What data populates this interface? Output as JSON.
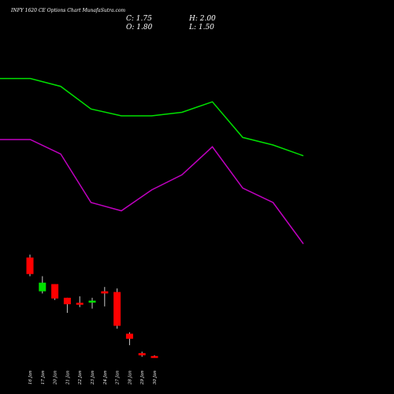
{
  "header": {
    "title": "INFY 1620  CE Options  Chart MunafaSutra.com",
    "close_label": "C: 1.75",
    "high_label": "H: 2.00",
    "open_label": "O: 1.80",
    "low_label": "L: 1.50"
  },
  "chart_data": {
    "type": "candlestick",
    "categories": [
      "16 Jan",
      "17 Jan",
      "20 Jan",
      "21 Jan",
      "22 Jan",
      "23 Jan",
      "24 Jan",
      "27 Jan",
      "28 Jan",
      "29 Jan",
      "30 Jan"
    ],
    "candles": [
      {
        "date": "16 Jan",
        "open": 29.2,
        "high": 30.0,
        "low": 24.0,
        "close": 24.6
      },
      {
        "date": "17 Jan",
        "open": 19.8,
        "high": 24.0,
        "low": 19.2,
        "close": 22.2
      },
      {
        "date": "20 Jan",
        "open": 21.8,
        "high": 21.8,
        "low": 17.4,
        "close": 17.8
      },
      {
        "date": "21 Jan",
        "open": 18.0,
        "high": 18.0,
        "low": 13.8,
        "close": 16.2
      },
      {
        "date": "22 Jan",
        "open": 16.6,
        "high": 18.4,
        "low": 15.4,
        "close": 16.2
      },
      {
        "date": "23 Jan",
        "open": 16.8,
        "high": 18.0,
        "low": 15.0,
        "close": 17.2
      },
      {
        "date": "24 Jan",
        "open": 19.8,
        "high": 21.0,
        "low": 15.6,
        "close": 19.2
      },
      {
        "date": "27 Jan",
        "open": 19.6,
        "high": 20.6,
        "low": 9.4,
        "close": 10.2
      },
      {
        "date": "28 Jan",
        "open": 8.0,
        "high": 8.4,
        "low": 4.8,
        "close": 6.6
      },
      {
        "date": "29 Jan",
        "open": 2.6,
        "high": 3.0,
        "low": 1.6,
        "close": 2.0
      },
      {
        "date": "30 Jan",
        "open": 1.8,
        "high": 2.0,
        "low": 1.5,
        "close": 1.75
      }
    ],
    "series": [
      {
        "color": "#00e000",
        "values": [
          79.0,
          79.0,
          76.8,
          70.5,
          68.6,
          68.6,
          69.6,
          72.5,
          62.6,
          60.5,
          57.5
        ]
      },
      {
        "color": "#c000c0",
        "values": [
          62.0,
          62.0,
          58.0,
          44.5,
          42.2,
          48.0,
          52.2,
          60.0,
          48.5,
          44.5,
          33.0
        ]
      }
    ],
    "ylim": [
      0,
      80
    ],
    "colors": {
      "up": "#00e000",
      "down": "#ff0000",
      "wick": "#c8c8c8"
    }
  }
}
